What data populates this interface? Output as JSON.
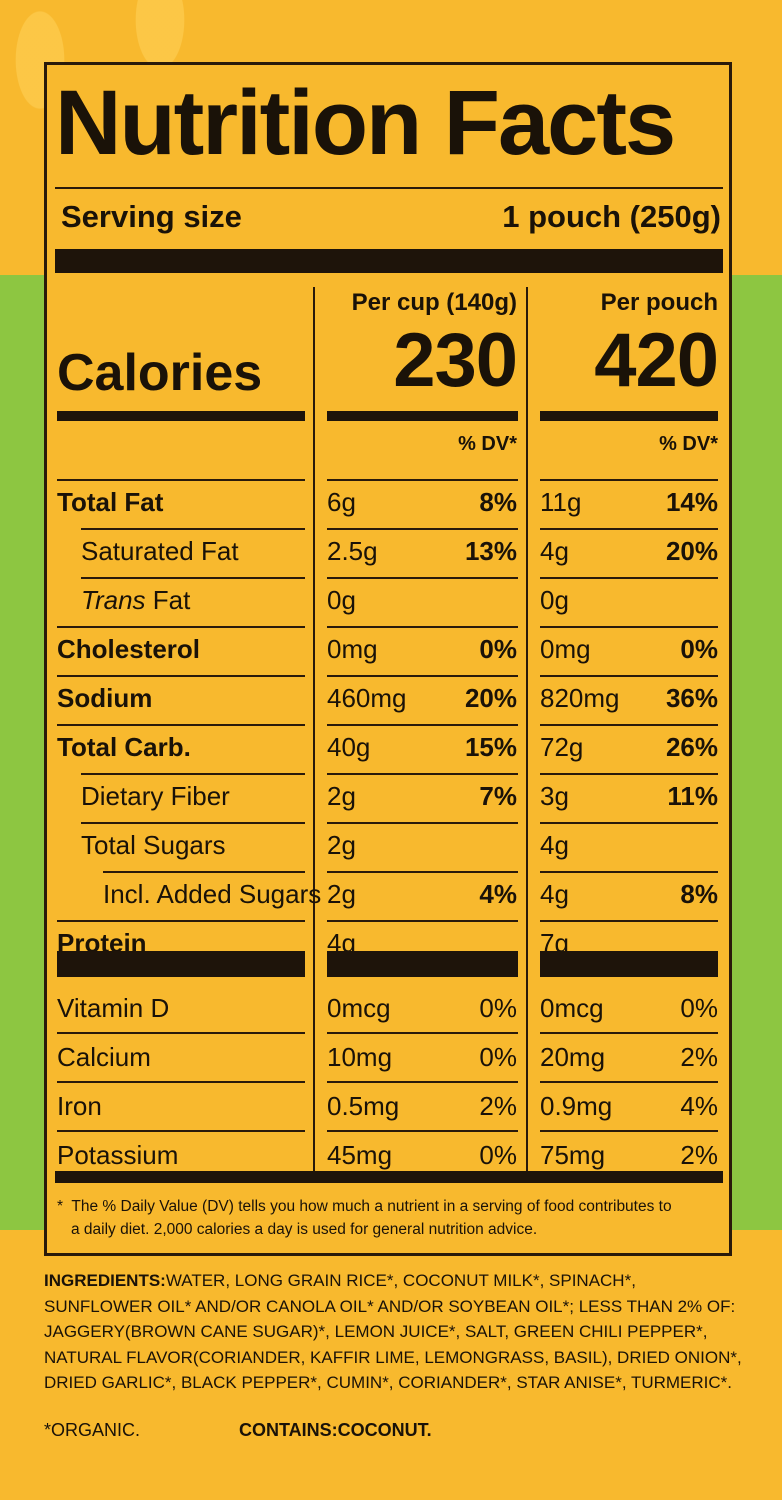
{
  "label": {
    "title": "Nutrition Facts",
    "serving_label": "Serving size",
    "serving_value": "1 pouch (250g)",
    "col1_header": "Per cup (140g)",
    "col2_header": "Per pouch",
    "calories_label": "Calories",
    "calories_cup": "230",
    "calories_pouch": "420",
    "dv_header": "% DV*"
  },
  "nutrients": [
    {
      "name": "Total Fat",
      "bold": true,
      "indent": 0,
      "cup": "6g",
      "cup_dv": "8%",
      "pouch": "11g",
      "pouch_dv": "14%"
    },
    {
      "name": "Saturated Fat",
      "bold": false,
      "indent": 1,
      "cup": "2.5g",
      "cup_dv": "13%",
      "pouch": "4g",
      "pouch_dv": "20%"
    },
    {
      "name_italic": "Trans",
      "name": " Fat",
      "bold": false,
      "indent": 1,
      "cup": "0g",
      "cup_dv": "",
      "pouch": "0g",
      "pouch_dv": ""
    },
    {
      "name": "Cholesterol",
      "bold": true,
      "indent": 0,
      "cup": "0mg",
      "cup_dv": "0%",
      "pouch": "0mg",
      "pouch_dv": "0%"
    },
    {
      "name": "Sodium",
      "bold": true,
      "indent": 0,
      "cup": "460mg",
      "cup_dv": "20%",
      "pouch": "820mg",
      "pouch_dv": "36%"
    },
    {
      "name": "Total Carb.",
      "bold": true,
      "indent": 0,
      "cup": "40g",
      "cup_dv": "15%",
      "pouch": "72g",
      "pouch_dv": "26%"
    },
    {
      "name": "Dietary Fiber",
      "bold": false,
      "indent": 1,
      "cup": "2g",
      "cup_dv": "7%",
      "pouch": "3g",
      "pouch_dv": "11%"
    },
    {
      "name": "Total Sugars",
      "bold": false,
      "indent": 1,
      "cup": "2g",
      "cup_dv": "",
      "pouch": "4g",
      "pouch_dv": ""
    },
    {
      "name": "Incl. Added Sugars",
      "bold": false,
      "indent": 2,
      "cup": "2g",
      "cup_dv": "4%",
      "pouch": "4g",
      "pouch_dv": "8%"
    },
    {
      "name": "Protein",
      "bold": true,
      "indent": 0,
      "cup": "4g",
      "cup_dv": "",
      "pouch": "7g",
      "pouch_dv": ""
    }
  ],
  "vitamins": [
    {
      "name": "Vitamin D",
      "cup": "0mcg",
      "cup_dv": "0%",
      "pouch": "0mcg",
      "pouch_dv": "0%"
    },
    {
      "name": "Calcium",
      "cup": "10mg",
      "cup_dv": "0%",
      "pouch": "20mg",
      "pouch_dv": "2%"
    },
    {
      "name": "Iron",
      "cup": "0.5mg",
      "cup_dv": "2%",
      "pouch": "0.9mg",
      "pouch_dv": "4%"
    },
    {
      "name": "Potassium",
      "cup": "45mg",
      "cup_dv": "0%",
      "pouch": "75mg",
      "pouch_dv": "2%"
    }
  ],
  "footnote": {
    "marker": "*",
    "line1": "The % Daily Value (DV) tells you how much a nutrient in a serving of food contributes to",
    "line2": "a daily diet. 2,000 calories a day is used for general nutrition advice."
  },
  "ingredients": {
    "heading": "INGREDIENTS:",
    "line1": "WATER, LONG GRAIN RICE*, COCONUT MILK*, SPINACH*,",
    "line2": "SUNFLOWER OIL* AND/OR CANOLA OIL* AND/OR SOYBEAN OIL*; LESS THAN 2% OF:",
    "line3": "JAGGERY(BROWN CANE SUGAR)*, LEMON JUICE*, SALT, GREEN CHILI PEPPER*,",
    "line4": "NATURAL FLAVOR(CORIANDER, KAFFIR LIME, LEMONGRASS, BASIL), DRIED ONION*,",
    "line5": "DRIED GARLIC*, BLACK PEPPER*, CUMIN*, CORIANDER*, STAR ANISE*, TURMERIC*.",
    "organic": "*ORGANIC.",
    "contains": "CONTAINS:COCONUT."
  },
  "colors": {
    "background": "#f8b92e",
    "band": "#8dc641",
    "ink": "#1e140a"
  }
}
